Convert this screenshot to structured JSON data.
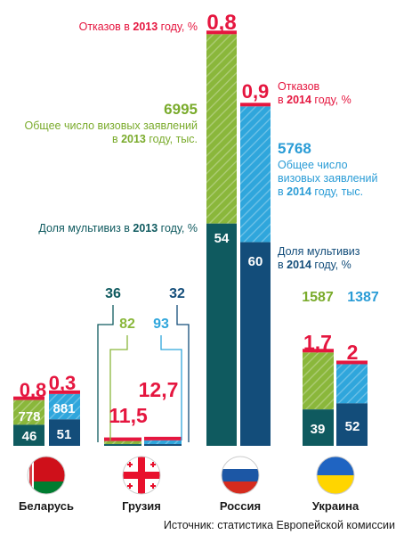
{
  "colors": {
    "green": "#8ab73b",
    "blue": "#2fa6dc",
    "darkTeal": "#0f5a5f",
    "darkBlue": "#134d7a",
    "red": "#e5163f",
    "label2013": "#7aab2c",
    "label2014": "#2a9cd6",
    "dark": "#1a1a1a"
  },
  "source_note": "Источник: статистика Европейской комиссии",
  "chart_data": {
    "type": "bar",
    "categories": [
      "Беларусь",
      "Грузия",
      "Россия",
      "Украина"
    ],
    "series": [
      {
        "key": "apps2013",
        "name": "Общее число визовых заявлений в 2013 году, тыс.",
        "values": [
          778,
          82,
          6995,
          1587
        ],
        "labels": [
          "778",
          "82",
          "6995",
          "1587"
        ]
      },
      {
        "key": "apps2014",
        "name": "Общее число визовых заявлений в 2014 году, тыс.",
        "values": [
          881,
          93,
          5768,
          1387
        ],
        "labels": [
          "881",
          "93",
          "5768",
          "1387"
        ]
      },
      {
        "key": "multi2013",
        "name": "Доля мультивиз в 2013 году, %",
        "values": [
          46,
          36,
          54,
          39
        ],
        "labels": [
          "46",
          "36",
          "54",
          "39"
        ]
      },
      {
        "key": "multi2014",
        "name": "Доля мультивиз в 2014 году, %",
        "values": [
          51,
          32,
          60,
          52
        ],
        "labels": [
          "51",
          "32",
          "60",
          "52"
        ]
      },
      {
        "key": "ref2013",
        "name": "Отказов в 2013 году, %",
        "values": [
          0.8,
          11.5,
          0.8,
          1.7
        ],
        "labels": [
          "0,8",
          "11,5",
          "0,8",
          "1,7"
        ]
      },
      {
        "key": "ref2014",
        "name": "Отказов в 2014 году, %",
        "values": [
          0.3,
          12.7,
          0.9,
          2
        ],
        "labels": [
          "0,3",
          "12,7",
          "0,9",
          "2"
        ]
      }
    ],
    "annotations": {
      "ref2013_part1": "Отказов в ",
      "ref2013_year": "2013",
      "ref2013_part2": " году, %",
      "ref2014_line1": "Отказов",
      "ref2014_prefix": "в ",
      "ref2014_year": "2014",
      "ref2014_suffix": " году, %",
      "apps2013_line1": "Общее число визовых заявлений",
      "apps2013_prefix": "в ",
      "apps2013_year": "2013",
      "apps2013_suffix": " году, тыс.",
      "apps2014_line1": "Общее число",
      "apps2014_line2": "визовых заявлений",
      "apps2014_prefix": "в ",
      "apps2014_year": "2014",
      "apps2014_suffix": " году, тыс.",
      "multi2013_prefix": "Доля мультивиз в ",
      "multi2013_year": "2013",
      "multi2013_suffix": " году, %",
      "multi2014_line1": "Доля мультивиз",
      "multi2014_prefix": "в ",
      "multi2014_year": "2014",
      "multi2014_suffix": " году, %"
    },
    "flags": [
      "belarus-flag-icon",
      "georgia-flag-icon",
      "russia-flag-icon",
      "ukraine-flag-icon"
    ],
    "grid": false,
    "legend": "none"
  }
}
